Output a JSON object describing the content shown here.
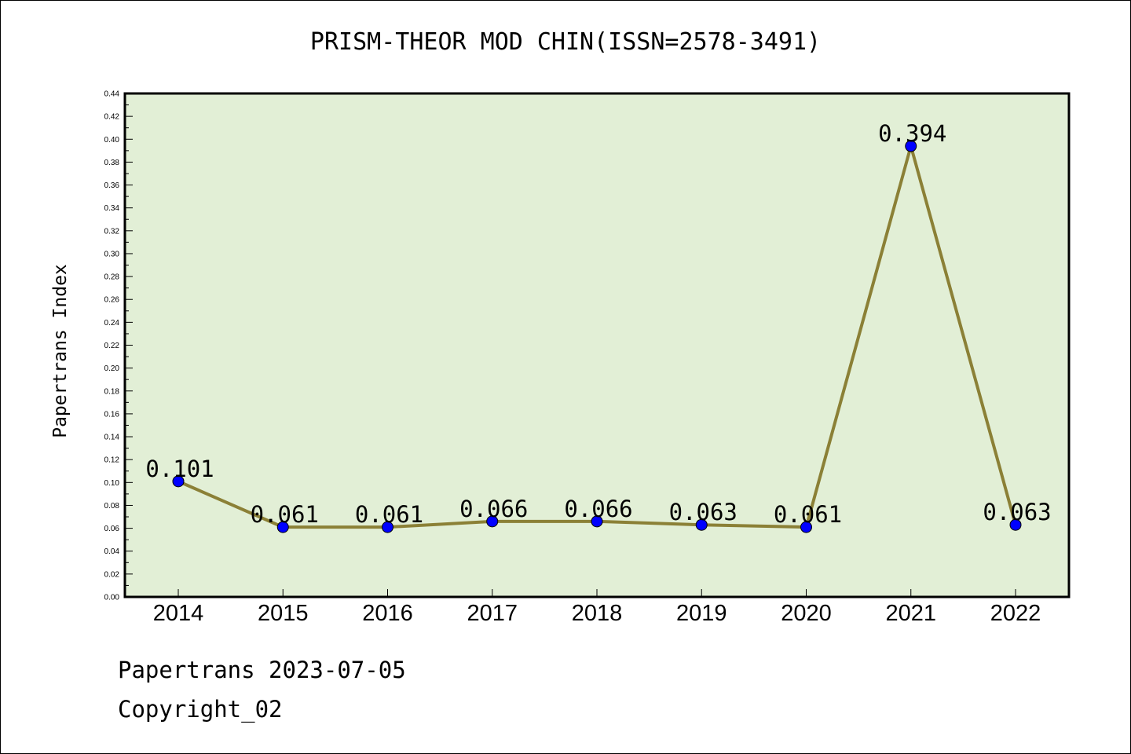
{
  "title": "PRISM-THEOR MOD CHIN(ISSN=2578-3491)",
  "footer": {
    "line1": "Papertrans 2023-07-05",
    "line2": "Copyright_02"
  },
  "colors": {
    "plot_background": "#e2efd6",
    "line": "#8b8036",
    "marker": "#0000ff",
    "frame": "#000000"
  },
  "chart_data": {
    "type": "line",
    "title": "PRISM-THEOR MOD CHIN(ISSN=2578-3491)",
    "xlabel": "",
    "ylabel": "Papertrans Index",
    "categories": [
      "2014",
      "2015",
      "2016",
      "2017",
      "2018",
      "2019",
      "2020",
      "2021",
      "2022"
    ],
    "values": [
      0.101,
      0.061,
      0.061,
      0.066,
      0.066,
      0.063,
      0.061,
      0.394,
      0.063
    ],
    "data_labels": [
      "0.101",
      "0.061",
      "0.061",
      "0.066",
      "0.066",
      "0.063",
      "0.061",
      "0.394",
      "0.063"
    ],
    "ylim": [
      0,
      0.44
    ],
    "ytick_step": 0.02,
    "grid": false,
    "legend": "none"
  }
}
